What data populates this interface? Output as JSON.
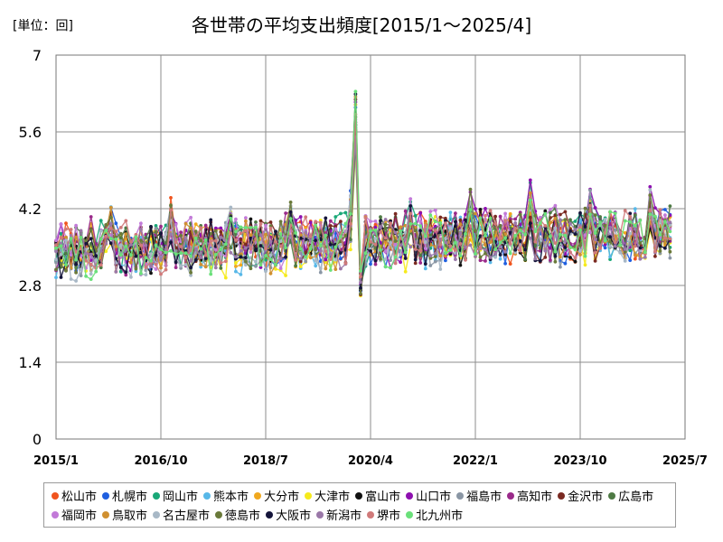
{
  "header": {
    "unit": "[単位：回]",
    "title": "各世帯の平均支出頻度[2015/1～2025/4]"
  },
  "chart_data": {
    "type": "line",
    "title": "各世帯の平均支出頻度[2015/1～2025/4]",
    "xlabel": "",
    "ylabel": "[単位：回]",
    "ylim": [
      0,
      7
    ],
    "yticks": [
      0,
      1.4,
      2.8,
      4.2,
      5.6,
      7
    ],
    "ytick_labels": [
      "0",
      "1.4",
      "2.8",
      "4.2",
      "5.6",
      "7"
    ],
    "xlim": [
      "2015/1",
      "2025/7"
    ],
    "xticks": [
      "2015/1",
      "2016/10",
      "2018/7",
      "2020/4",
      "2022/1",
      "2023/10",
      "2025/7"
    ],
    "grid": true,
    "legend_position": "bottom",
    "series": [
      {
        "name": "松山市",
        "color": "#f0541e",
        "base": 3.45,
        "amp": 0.38,
        "trend": 0.35,
        "seed": 1
      },
      {
        "name": "札幌市",
        "color": "#1f5fe0",
        "base": 3.4,
        "amp": 0.36,
        "trend": 0.35,
        "seed": 2
      },
      {
        "name": "岡山市",
        "color": "#1aa878",
        "base": 3.45,
        "amp": 0.4,
        "trend": 0.35,
        "seed": 3
      },
      {
        "name": "熊本市",
        "color": "#58b8e8",
        "base": 3.4,
        "amp": 0.38,
        "trend": 0.35,
        "seed": 4
      },
      {
        "name": "大分市",
        "color": "#f0a81e",
        "base": 3.45,
        "amp": 0.36,
        "trend": 0.35,
        "seed": 5
      },
      {
        "name": "大津市",
        "color": "#f6ea1c",
        "base": 3.35,
        "amp": 0.36,
        "trend": 0.35,
        "seed": 6
      },
      {
        "name": "富山市",
        "color": "#111111",
        "base": 3.45,
        "amp": 0.38,
        "trend": 0.35,
        "seed": 7
      },
      {
        "name": "山口市",
        "color": "#8e10b0",
        "base": 3.45,
        "amp": 0.42,
        "trend": 0.35,
        "seed": 8
      },
      {
        "name": "福島市",
        "color": "#8a96a4",
        "base": 3.35,
        "amp": 0.36,
        "trend": 0.35,
        "seed": 9
      },
      {
        "name": "高知市",
        "color": "#9a2a8a",
        "base": 3.5,
        "amp": 0.4,
        "trend": 0.35,
        "seed": 10
      },
      {
        "name": "金沢市",
        "color": "#7a2a22",
        "base": 3.45,
        "amp": 0.38,
        "trend": 0.35,
        "seed": 11
      },
      {
        "name": "広島市",
        "color": "#4e7a44",
        "base": 3.45,
        "amp": 0.38,
        "trend": 0.35,
        "seed": 12
      },
      {
        "name": "福岡市",
        "color": "#c27ad8",
        "base": 3.5,
        "amp": 0.38,
        "trend": 0.35,
        "seed": 13
      },
      {
        "name": "鳥取市",
        "color": "#d09030",
        "base": 3.4,
        "amp": 0.36,
        "trend": 0.35,
        "seed": 14
      },
      {
        "name": "名古屋市",
        "color": "#a8b8c6",
        "base": 3.35,
        "amp": 0.34,
        "trend": 0.35,
        "seed": 15
      },
      {
        "name": "徳島市",
        "color": "#6a7a3a",
        "base": 3.45,
        "amp": 0.38,
        "trend": 0.35,
        "seed": 16
      },
      {
        "name": "大阪市",
        "color": "#14143a",
        "base": 3.4,
        "amp": 0.36,
        "trend": 0.35,
        "seed": 17
      },
      {
        "name": "新潟市",
        "color": "#9a78a8",
        "base": 3.35,
        "amp": 0.36,
        "trend": 0.35,
        "seed": 18
      },
      {
        "name": "堺市",
        "color": "#d07a7a",
        "base": 3.45,
        "amp": 0.36,
        "trend": 0.35,
        "seed": 19
      },
      {
        "name": "北九州市",
        "color": "#6ae07a",
        "base": 3.4,
        "amp": 0.38,
        "trend": 0.35,
        "seed": 20
      }
    ]
  }
}
